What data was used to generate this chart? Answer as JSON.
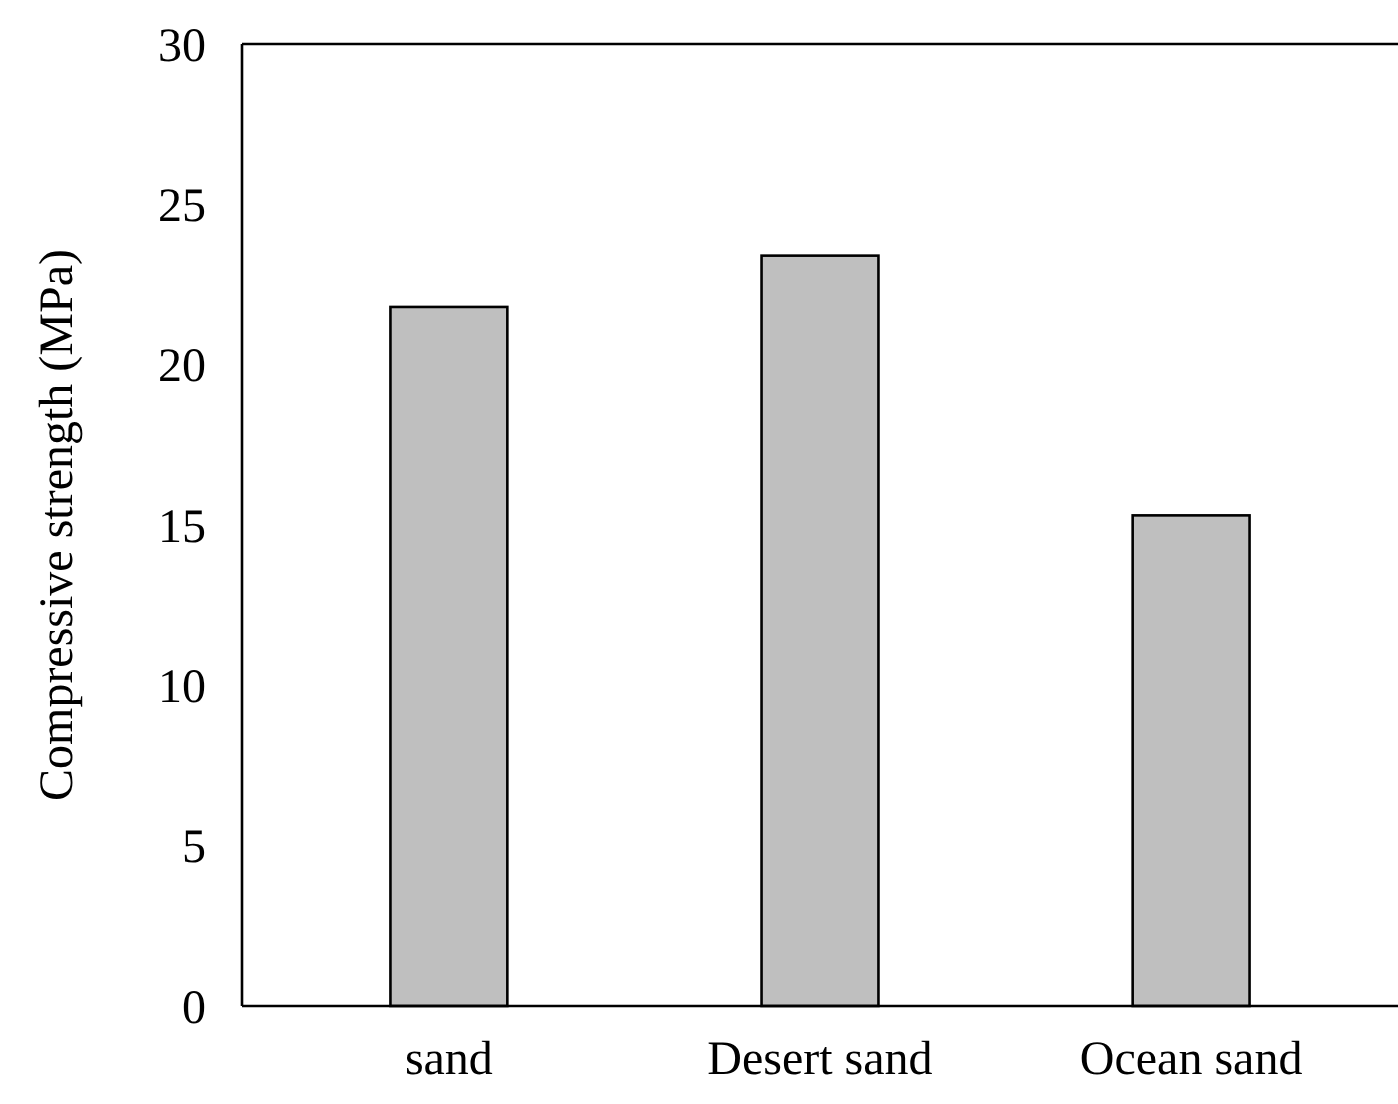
{
  "chart_data": {
    "type": "bar",
    "ylabel": "Compressive strength (MPa)",
    "categories": [
      "sand",
      "Desert sand",
      "Ocean sand"
    ],
    "values": [
      21.8,
      23.4,
      15.3
    ],
    "color": "#bfbfbf",
    "ylim": [
      0,
      30
    ],
    "yticks": [
      0,
      5,
      10,
      15,
      20,
      25,
      30
    ],
    "grid": false
  }
}
